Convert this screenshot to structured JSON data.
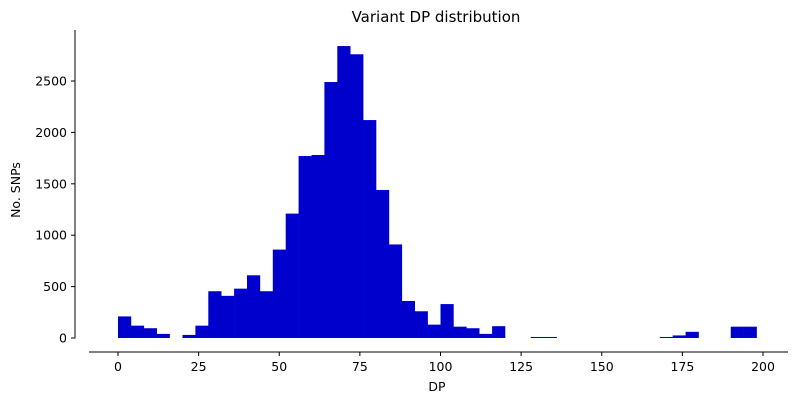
{
  "chart_data": {
    "type": "bar",
    "title": "Variant DP distribution",
    "xlabel": "DP",
    "ylabel": "No. SNPs",
    "xlim": [
      -8,
      204
    ],
    "ylim": [
      0,
      2950
    ],
    "xticks": [
      0,
      25,
      50,
      75,
      100,
      125,
      150,
      175,
      200
    ],
    "yticks": [
      0,
      500,
      1000,
      1500,
      2000,
      2500
    ],
    "bar_color": "#0000cc",
    "grid": false,
    "bin_width": 4,
    "bins": [
      {
        "x0": 0,
        "x1": 4,
        "count": 210
      },
      {
        "x0": 4,
        "x1": 8,
        "count": 120
      },
      {
        "x0": 8,
        "x1": 12,
        "count": 95
      },
      {
        "x0": 12,
        "x1": 16,
        "count": 40
      },
      {
        "x0": 16,
        "x1": 20,
        "count": 0
      },
      {
        "x0": 20,
        "x1": 24,
        "count": 30
      },
      {
        "x0": 24,
        "x1": 28,
        "count": 120
      },
      {
        "x0": 28,
        "x1": 32,
        "count": 455
      },
      {
        "x0": 32,
        "x1": 36,
        "count": 410
      },
      {
        "x0": 36,
        "x1": 40,
        "count": 480
      },
      {
        "x0": 40,
        "x1": 44,
        "count": 610
      },
      {
        "x0": 44,
        "x1": 48,
        "count": 455
      },
      {
        "x0": 48,
        "x1": 52,
        "count": 860
      },
      {
        "x0": 52,
        "x1": 56,
        "count": 1210
      },
      {
        "x0": 56,
        "x1": 60,
        "count": 1770
      },
      {
        "x0": 60,
        "x1": 64,
        "count": 1780
      },
      {
        "x0": 64,
        "x1": 68,
        "count": 2490
      },
      {
        "x0": 68,
        "x1": 72,
        "count": 2840
      },
      {
        "x0": 72,
        "x1": 76,
        "count": 2760
      },
      {
        "x0": 76,
        "x1": 80,
        "count": 2120
      },
      {
        "x0": 80,
        "x1": 84,
        "count": 1440
      },
      {
        "x0": 84,
        "x1": 88,
        "count": 910
      },
      {
        "x0": 88,
        "x1": 92,
        "count": 360
      },
      {
        "x0": 92,
        "x1": 96,
        "count": 260
      },
      {
        "x0": 96,
        "x1": 100,
        "count": 130
      },
      {
        "x0": 100,
        "x1": 104,
        "count": 330
      },
      {
        "x0": 104,
        "x1": 108,
        "count": 110
      },
      {
        "x0": 108,
        "x1": 112,
        "count": 95
      },
      {
        "x0": 112,
        "x1": 116,
        "count": 40
      },
      {
        "x0": 116,
        "x1": 120,
        "count": 115
      },
      {
        "x0": 128,
        "x1": 132,
        "count": 10
      },
      {
        "x0": 132,
        "x1": 136,
        "count": 10
      },
      {
        "x0": 168,
        "x1": 172,
        "count": 10
      },
      {
        "x0": 172,
        "x1": 176,
        "count": 25
      },
      {
        "x0": 176,
        "x1": 180,
        "count": 60
      },
      {
        "x0": 190,
        "x1": 194,
        "count": 110
      },
      {
        "x0": 194,
        "x1": 198,
        "count": 110
      }
    ]
  }
}
